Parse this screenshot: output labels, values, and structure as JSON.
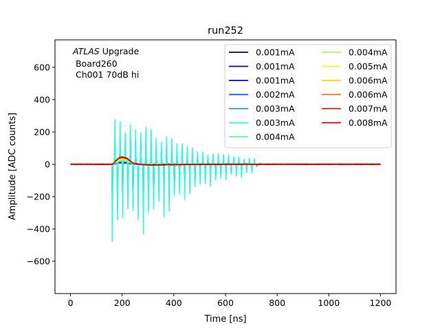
{
  "chart_data": {
    "type": "line",
    "title": "run252",
    "xlabel": "Time [ns]",
    "ylabel": "Amplitude [ADC counts]",
    "xlim": [
      -60,
      1260
    ],
    "ylim": [
      -800,
      770
    ],
    "xticks": [
      0,
      200,
      400,
      600,
      800,
      1000,
      1200
    ],
    "yticks": [
      -600,
      -400,
      -200,
      0,
      200,
      400,
      600
    ],
    "annotation": {
      "experiment": "ATLAS",
      "label": " Upgrade",
      "board": " Board260",
      "channel": " Ch001 70dB hi"
    },
    "legend_position": "upper-right",
    "legend_columns": 2,
    "series": [
      {
        "name": "0.001mA",
        "color": "#00008f",
        "kind": "pulse",
        "amp": 10,
        "ringing": 0,
        "ringing_span": [
          0,
          0
        ]
      },
      {
        "name": "0.001mA",
        "color": "#0000c8",
        "kind": "pulse",
        "amp": 12,
        "ringing": 0,
        "ringing_span": [
          0,
          0
        ]
      },
      {
        "name": "0.001mA",
        "color": "#0000ff",
        "kind": "noisy",
        "amp": 15,
        "ringing": 340,
        "ringing_span": [
          160,
          720
        ]
      },
      {
        "name": "0.002mA",
        "color": "#0050ff",
        "kind": "noisy",
        "amp": 18,
        "ringing": 280,
        "ringing_span": [
          160,
          700
        ]
      },
      {
        "name": "0.003mA",
        "color": "#00b0ff",
        "kind": "noisy",
        "amp": 20,
        "ringing": 150,
        "ringing_span": [
          160,
          740
        ]
      },
      {
        "name": "0.003mA",
        "color": "#20ffdf",
        "kind": "noisy",
        "amp": 22,
        "ringing": 560,
        "ringing_span": [
          160,
          720
        ]
      },
      {
        "name": "0.004mA",
        "color": "#60ff9f",
        "kind": "pulse",
        "amp": 28,
        "ringing": 0,
        "ringing_span": [
          0,
          0
        ]
      },
      {
        "name": "0.004mA",
        "color": "#9fff60",
        "kind": "pulse",
        "amp": 32,
        "ringing": 0,
        "ringing_span": [
          0,
          0
        ]
      },
      {
        "name": "0.005mA",
        "color": "#dfff20",
        "kind": "pulse",
        "amp": 36,
        "ringing": 0,
        "ringing_span": [
          0,
          0
        ]
      },
      {
        "name": "0.006mA",
        "color": "#ffd000",
        "kind": "pulse",
        "amp": 40,
        "ringing": 0,
        "ringing_span": [
          0,
          0
        ]
      },
      {
        "name": "0.006mA",
        "color": "#ff7000",
        "kind": "pulse",
        "amp": 44,
        "ringing": 0,
        "ringing_span": [
          0,
          0
        ]
      },
      {
        "name": "0.007mA",
        "color": "#ff2000",
        "kind": "pulse",
        "amp": 48,
        "ringing": 0,
        "ringing_span": [
          0,
          0
        ]
      },
      {
        "name": "0.008mA",
        "color": "#c80000",
        "kind": "pulse",
        "amp": 50,
        "ringing": 0,
        "ringing_span": [
          0,
          0
        ]
      }
    ],
    "pulse_peak_time": 200,
    "undershoot_min": -20,
    "time_range": [
      0,
      1200
    ]
  }
}
